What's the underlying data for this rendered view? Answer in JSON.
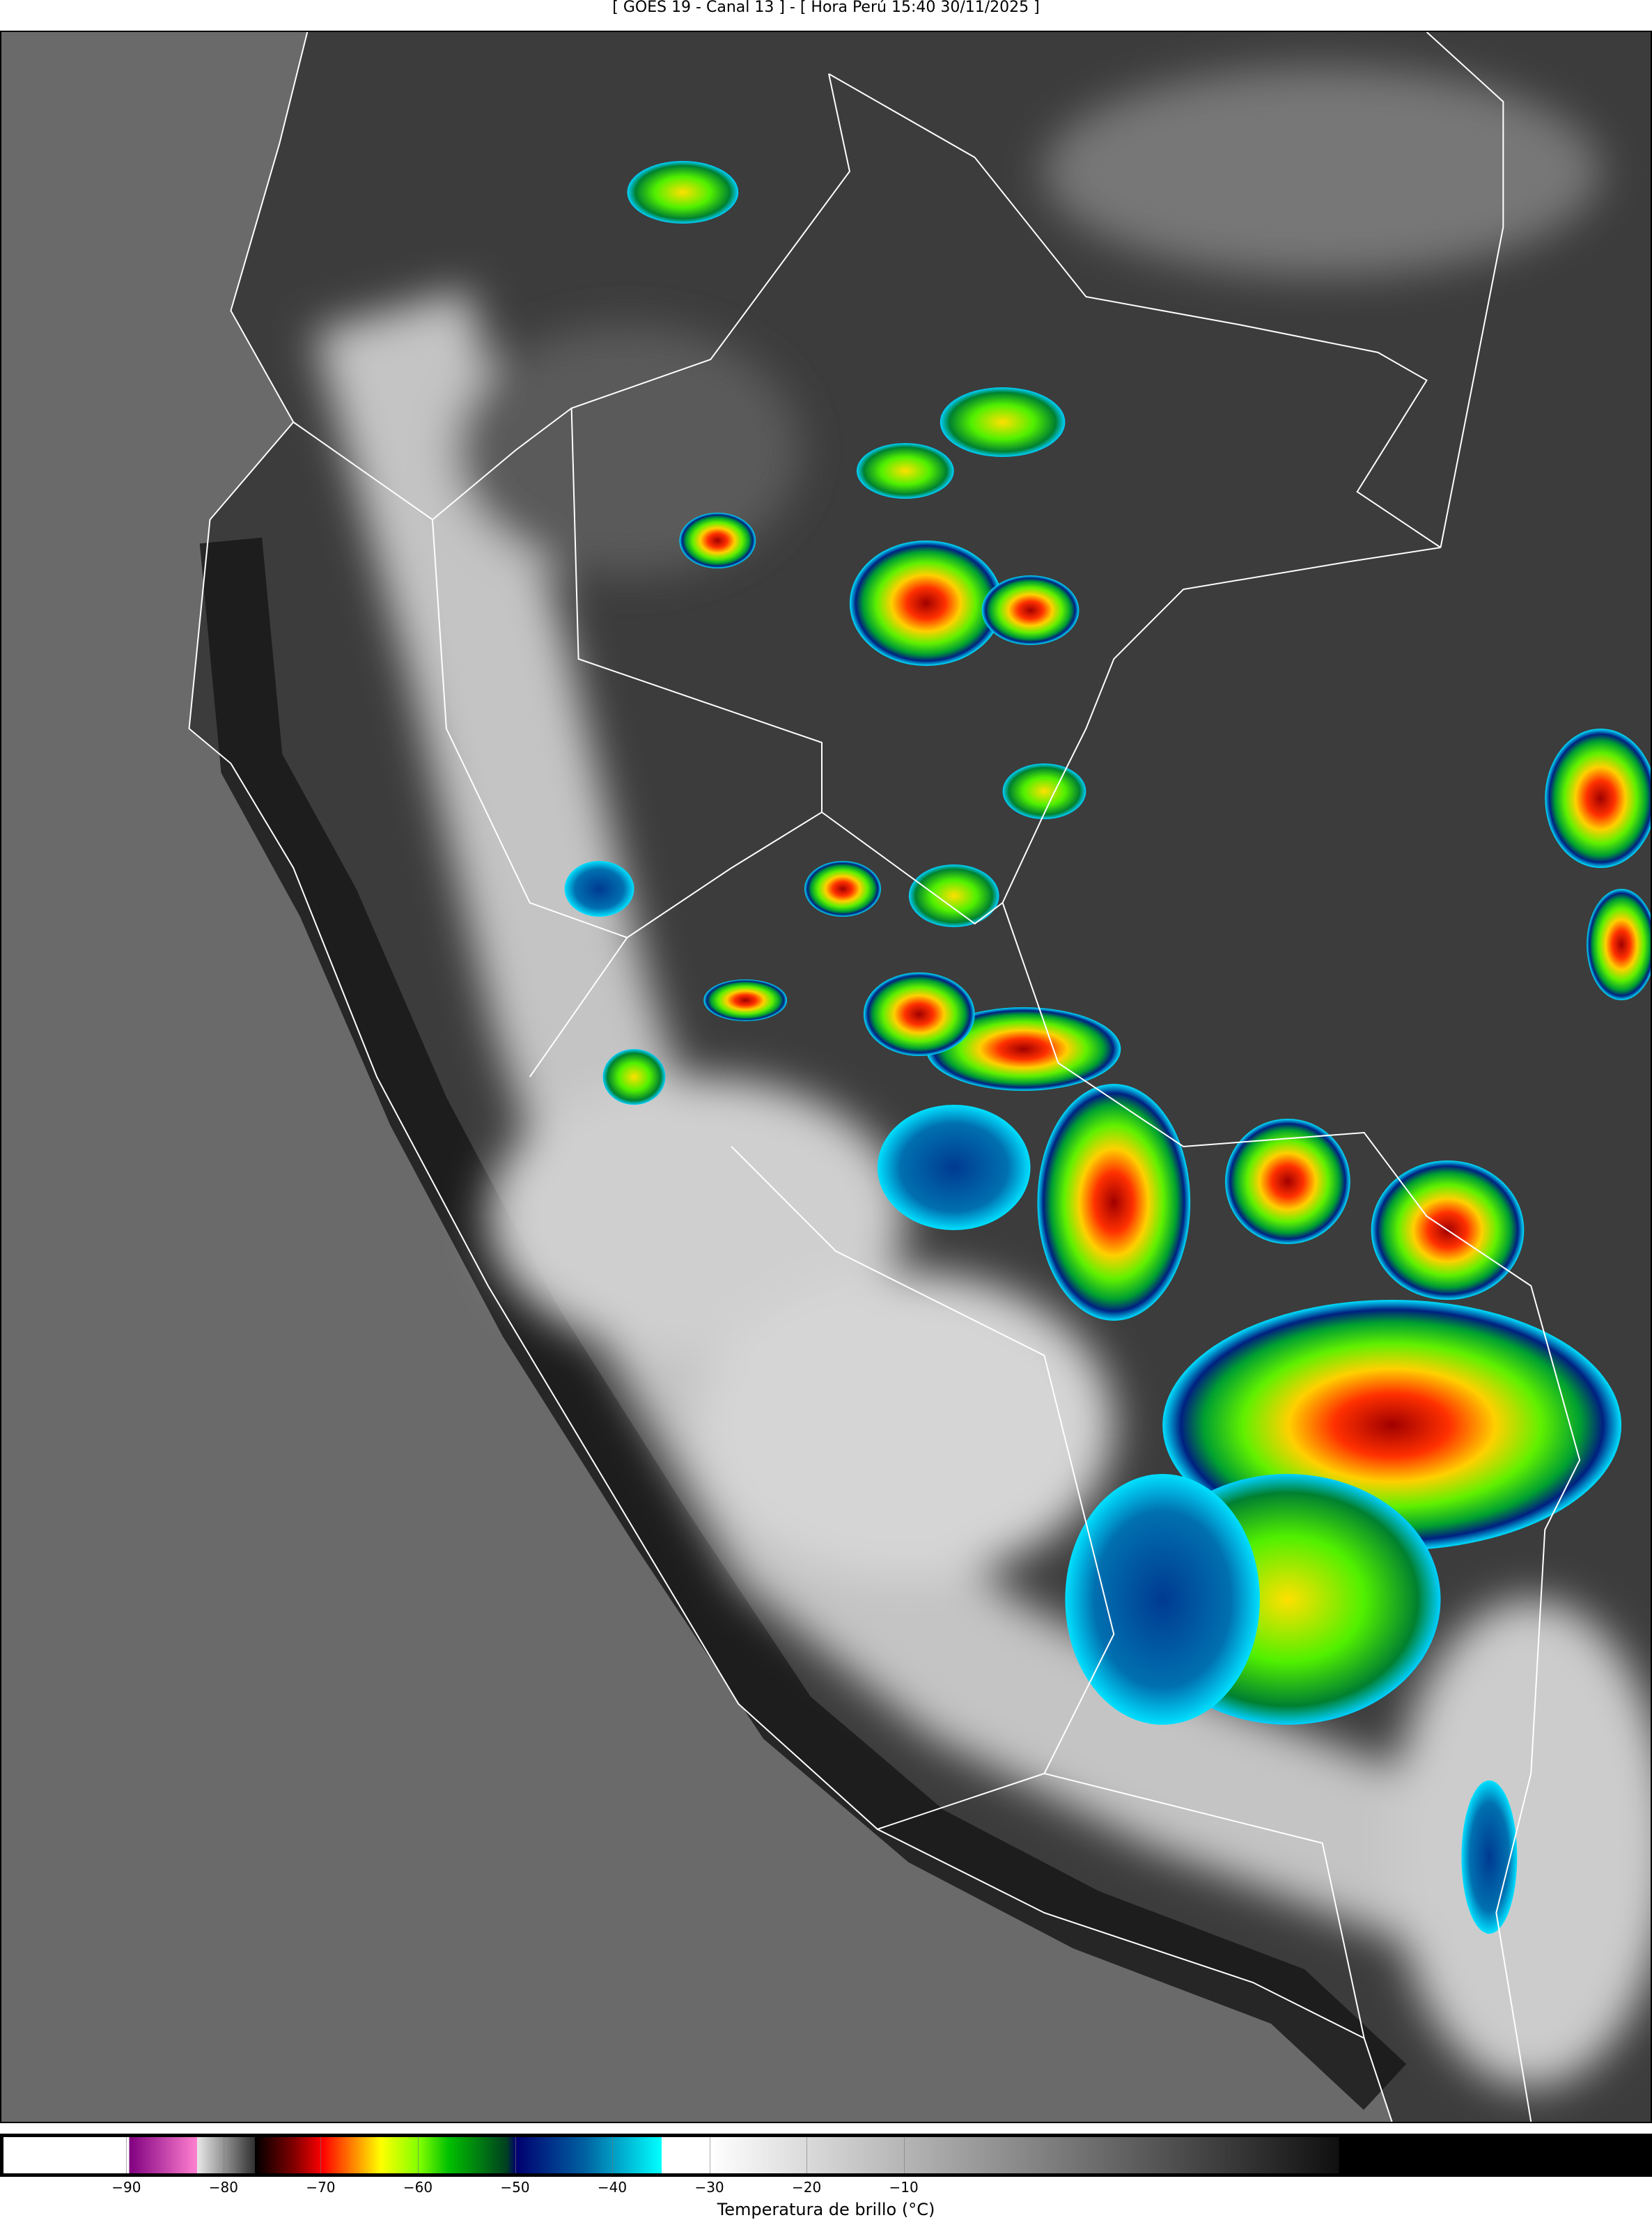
{
  "title": "[ GOES 19 - Canal 13 ] - [ Hora Perú 15:40 30/11/2025 ]",
  "map": {
    "region": "Peru",
    "imagery": "infrared brightness temperature",
    "colors": {
      "ocean": "#6a6a6a",
      "land": "#3c3c3c",
      "borders": "#ffffff"
    }
  },
  "colorbar": {
    "label": "Temperatura de brillo (°C)",
    "range": [
      -103,
      67
    ],
    "ticks": [
      -90,
      -80,
      -70,
      -60,
      -50,
      -40,
      -30,
      -20,
      -10
    ],
    "tick_labels": [
      "−90",
      "−80",
      "−70",
      "−60",
      "−50",
      "−40",
      "−30",
      "−20",
      "−10"
    ],
    "stops": [
      {
        "t": -103,
        "c": "#ffffff"
      },
      {
        "t": -90,
        "c": "#ffffff"
      },
      {
        "t": -90,
        "c": "#800080"
      },
      {
        "t": -83,
        "c": "#ff80d0"
      },
      {
        "t": -83,
        "c": "#e8e8e8"
      },
      {
        "t": -77,
        "c": "#303030"
      },
      {
        "t": -77,
        "c": "#000000"
      },
      {
        "t": -73,
        "c": "#800000"
      },
      {
        "t": -70,
        "c": "#ff0000"
      },
      {
        "t": -67,
        "c": "#ff8000"
      },
      {
        "t": -64,
        "c": "#ffff00"
      },
      {
        "t": -60,
        "c": "#80ff00"
      },
      {
        "t": -57,
        "c": "#00c000"
      },
      {
        "t": -51,
        "c": "#004020"
      },
      {
        "t": -50,
        "c": "#000070"
      },
      {
        "t": -43,
        "c": "#0060a0"
      },
      {
        "t": -35,
        "c": "#00ffff"
      },
      {
        "t": -35,
        "c": "#ffffff"
      },
      {
        "t": -30,
        "c": "#ffffff"
      },
      {
        "t": 35,
        "c": "#101010"
      },
      {
        "t": 35,
        "c": "#000000"
      },
      {
        "t": 67,
        "c": "#000000"
      }
    ]
  }
}
